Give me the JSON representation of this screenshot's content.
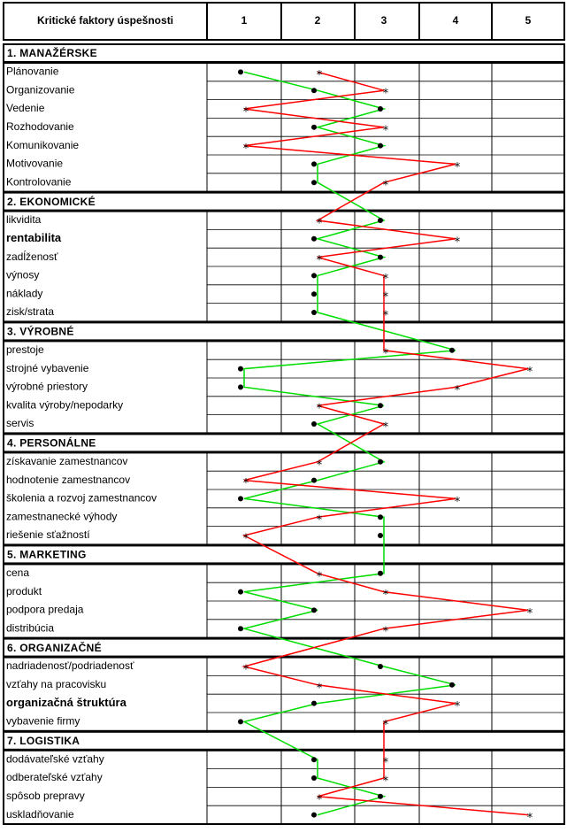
{
  "chart_data": {
    "type": "line",
    "header": {
      "label": "Kritické faktory úspešnosti",
      "columns": [
        "1",
        "2",
        "3",
        "4",
        "5"
      ]
    },
    "xlim": [
      1,
      5
    ],
    "series": [
      {
        "marker": "dot",
        "color": "#00dd00"
      },
      {
        "marker": "star",
        "color": "#ff0000"
      }
    ],
    "sections": [
      {
        "title": "1. MANAŽÉRSKE",
        "items": [
          {
            "label": "Plánovanie",
            "green": 1,
            "red": 2
          },
          {
            "label": "Organizovanie",
            "green": 2,
            "red": 3
          },
          {
            "label": "Vedenie",
            "green": 3,
            "red": 1
          },
          {
            "label": "Rozhodovanie",
            "green": 2,
            "red": 3
          },
          {
            "label": "Komunikovanie",
            "green": 3,
            "red": 1
          },
          {
            "label": "Motivovanie",
            "green": 2,
            "red": 4
          },
          {
            "label": "Kontrolovanie",
            "green": 2,
            "red": 3
          }
        ]
      },
      {
        "title": "2. EKONOMICKÉ",
        "items": [
          {
            "label": "likvidita",
            "green": 3,
            "red": 2
          },
          {
            "label": "rentabilita",
            "green": 2,
            "red": 4,
            "bold": true
          },
          {
            "label": "zadĺženosť",
            "green": 3,
            "red": 2
          },
          {
            "label": "výnosy",
            "green": 2,
            "red": 3
          },
          {
            "label": "náklady",
            "green": 2,
            "red": 3
          },
          {
            "label": "zisk/strata",
            "green": 2,
            "red": 3
          }
        ]
      },
      {
        "title": "3. VÝROBNÉ",
        "items": [
          {
            "label": "prestoje",
            "green": 4,
            "red": 3
          },
          {
            "label": "strojné vybavenie",
            "green": 1,
            "red": 5
          },
          {
            "label": "výrobné priestory",
            "green": 1,
            "red": 4
          },
          {
            "label": "kvalita výroby/nepodarky",
            "green": 3,
            "red": 2
          },
          {
            "label": "servis",
            "green": 2,
            "red": 3
          }
        ]
      },
      {
        "title": "4. PERSONÁLNE",
        "items": [
          {
            "label": "získavanie zamestnancov",
            "green": 3,
            "red": 2
          },
          {
            "label": "hodnotenie zamestnancov",
            "green": 2,
            "red": 1
          },
          {
            "label": "školenia a rozvoj zamestnancov",
            "green": 1,
            "red": 4
          },
          {
            "label": "zamestnanecké výhody",
            "green": 3,
            "red": 2
          },
          {
            "label": "riešenie sťažností",
            "green": 3,
            "red": 1
          }
        ]
      },
      {
        "title": "5. MARKETING",
        "items": [
          {
            "label": "cena",
            "green": 3,
            "red": 2
          },
          {
            "label": "produkt",
            "green": 1,
            "red": 3
          },
          {
            "label": "podpora predaja",
            "green": 2,
            "red": 5
          },
          {
            "label": "distribúcia",
            "green": 1,
            "red": 3
          }
        ]
      },
      {
        "title": "6. ORGANIZAČNÉ",
        "items": [
          {
            "label": "nadriadenosť/podriadenosť",
            "green": 3,
            "red": 1
          },
          {
            "label": "vzťahy na pracovisku",
            "green": 4,
            "red": 2
          },
          {
            "label": "organizačná štruktúra",
            "green": 2,
            "red": 4,
            "bold": true
          },
          {
            "label": "vybavenie firmy",
            "green": 1,
            "red": 3
          }
        ]
      },
      {
        "title": "7. LOGISTIKA",
        "items": [
          {
            "label": "dodávateľské vzťahy",
            "green": 2,
            "red": 3
          },
          {
            "label": "odberateľské vzťahy",
            "green": 2,
            "red": 3
          },
          {
            "label": "spôsob prepravy",
            "green": 3,
            "red": 2
          },
          {
            "label": "uskladňovanie",
            "green": 2,
            "red": 5
          }
        ]
      }
    ]
  }
}
